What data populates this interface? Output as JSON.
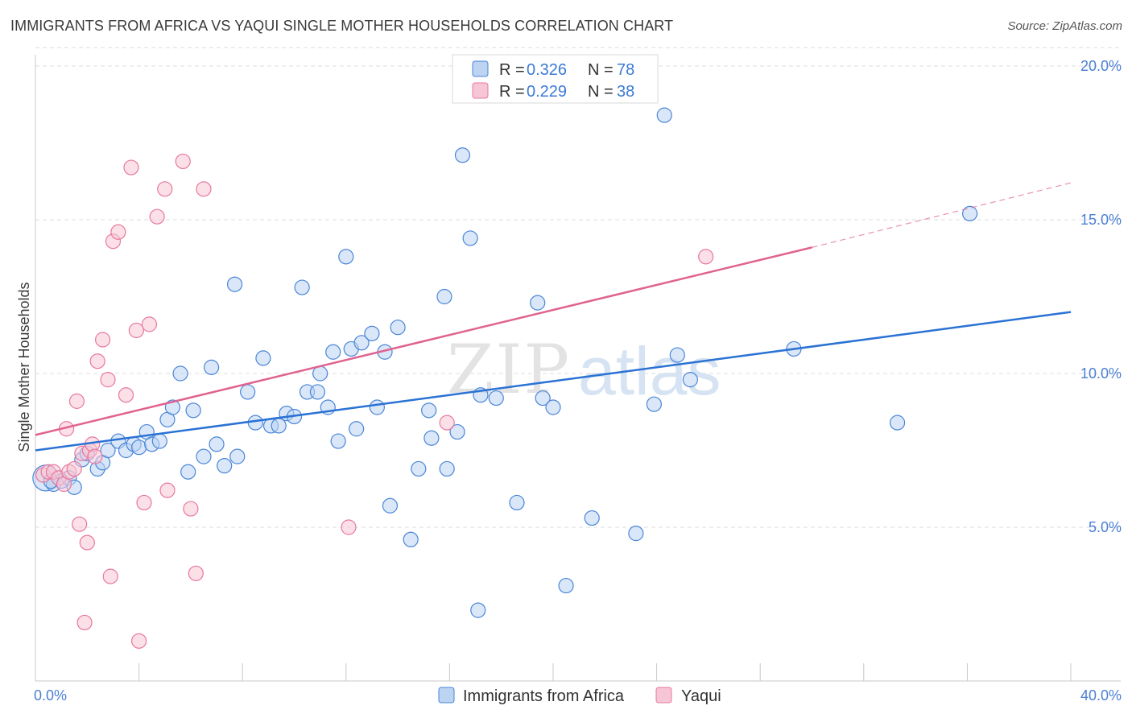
{
  "header": {
    "title": "IMMIGRANTS FROM AFRICA VS YAQUI SINGLE MOTHER HOUSEHOLDS CORRELATION CHART",
    "source": "Source: ZipAtlas.com"
  },
  "watermark": {
    "part1": "ZIP",
    "part2": "atlas"
  },
  "colors": {
    "blue": "#4a86d8",
    "blue_fill": "#bcd3f2",
    "blue_line": "#2a72d4",
    "pink": "#e8789e",
    "pink_fill": "#f7c6d6",
    "pink_line": "#e0628f",
    "grid": "#dcdcdc",
    "tick_text": "#4a7fd4"
  },
  "legend": {
    "entries": [
      {
        "r_label": "R =",
        "r_value": "0.326",
        "n_label": "N =",
        "n_value": "78"
      },
      {
        "r_label": "R =",
        "r_value": "0.229",
        "n_label": "N =",
        "n_value": "38"
      }
    ]
  },
  "bottom_legend": [
    "Immigrants from Africa",
    "Yaqui"
  ],
  "chart_data": {
    "type": "scatter",
    "title": "IMMIGRANTS FROM AFRICA VS YAQUI SINGLE MOTHER HOUSEHOLDS CORRELATION CHART",
    "xlabel": "",
    "ylabel": "Single Mother Households",
    "xlim": [
      0,
      40
    ],
    "ylim": [
      0,
      20.6
    ],
    "x_tick_labels": [
      {
        "value": 0,
        "label": "0.0%"
      },
      {
        "value": 40,
        "label": "40.0%"
      }
    ],
    "y_tick_labels": [
      {
        "value": 5,
        "label": "5.0%"
      },
      {
        "value": 10,
        "label": "10.0%"
      },
      {
        "value": 15,
        "label": "15.0%"
      },
      {
        "value": 20,
        "label": "20.0%"
      }
    ],
    "x_minor_ticks": [
      4,
      8,
      12,
      16,
      20,
      24,
      28,
      32,
      36,
      40
    ],
    "series": [
      {
        "name": "Immigrants from Africa",
        "color": "blue",
        "R": 0.326,
        "N": 78,
        "trend": {
          "x": [
            0,
            40
          ],
          "y": [
            7.5,
            12.0
          ]
        },
        "points": [
          [
            0.4,
            6.6
          ],
          [
            0.7,
            6.4
          ],
          [
            1.0,
            6.5
          ],
          [
            1.3,
            6.6
          ],
          [
            1.5,
            6.3
          ],
          [
            1.8,
            7.2
          ],
          [
            2.0,
            7.4
          ],
          [
            2.4,
            6.9
          ],
          [
            2.6,
            7.1
          ],
          [
            2.8,
            7.5
          ],
          [
            3.2,
            7.8
          ],
          [
            3.5,
            7.5
          ],
          [
            3.8,
            7.7
          ],
          [
            4.0,
            7.6
          ],
          [
            4.3,
            8.1
          ],
          [
            4.5,
            7.7
          ],
          [
            4.8,
            7.8
          ],
          [
            5.1,
            8.5
          ],
          [
            5.3,
            8.9
          ],
          [
            5.6,
            10.0
          ],
          [
            5.9,
            6.8
          ],
          [
            6.1,
            8.8
          ],
          [
            6.5,
            7.3
          ],
          [
            6.8,
            10.2
          ],
          [
            7.0,
            7.7
          ],
          [
            7.3,
            7.0
          ],
          [
            7.7,
            12.9
          ],
          [
            7.8,
            7.3
          ],
          [
            8.2,
            9.4
          ],
          [
            8.5,
            8.4
          ],
          [
            8.8,
            10.5
          ],
          [
            9.1,
            8.3
          ],
          [
            9.4,
            8.3
          ],
          [
            9.7,
            8.7
          ],
          [
            10.0,
            8.6
          ],
          [
            10.3,
            12.8
          ],
          [
            10.5,
            9.4
          ],
          [
            10.9,
            9.4
          ],
          [
            11.0,
            10.0
          ],
          [
            11.3,
            8.9
          ],
          [
            11.5,
            10.7
          ],
          [
            11.7,
            7.8
          ],
          [
            12.0,
            13.8
          ],
          [
            12.2,
            10.8
          ],
          [
            12.4,
            8.2
          ],
          [
            12.6,
            11.0
          ],
          [
            13.0,
            11.3
          ],
          [
            13.2,
            8.9
          ],
          [
            13.5,
            10.7
          ],
          [
            13.7,
            5.7
          ],
          [
            14.0,
            11.5
          ],
          [
            14.5,
            4.6
          ],
          [
            14.8,
            6.9
          ],
          [
            15.2,
            8.8
          ],
          [
            15.3,
            7.9
          ],
          [
            15.8,
            12.5
          ],
          [
            15.9,
            6.9
          ],
          [
            16.3,
            8.1
          ],
          [
            16.5,
            17.1
          ],
          [
            16.8,
            14.4
          ],
          [
            17.1,
            2.3
          ],
          [
            17.2,
            9.3
          ],
          [
            17.8,
            9.2
          ],
          [
            18.6,
            5.8
          ],
          [
            19.4,
            12.3
          ],
          [
            19.6,
            9.2
          ],
          [
            20.0,
            8.9
          ],
          [
            20.5,
            3.1
          ],
          [
            21.5,
            5.3
          ],
          [
            23.2,
            4.8
          ],
          [
            23.9,
            9.0
          ],
          [
            24.3,
            18.4
          ],
          [
            24.8,
            10.6
          ],
          [
            25.3,
            9.8
          ],
          [
            29.3,
            10.8
          ],
          [
            33.3,
            8.4
          ],
          [
            36.1,
            15.2
          ],
          [
            0.6,
            6.5
          ]
        ]
      },
      {
        "name": "Yaqui",
        "color": "pink",
        "R": 0.229,
        "N": 38,
        "trend": {
          "x": [
            0,
            30
          ],
          "y": [
            8.0,
            14.1
          ]
        },
        "trend_dashed": {
          "x": [
            30,
            40
          ],
          "y": [
            14.1,
            16.2
          ]
        },
        "points": [
          [
            0.3,
            6.7
          ],
          [
            0.5,
            6.8
          ],
          [
            0.7,
            6.8
          ],
          [
            0.9,
            6.6
          ],
          [
            1.1,
            6.4
          ],
          [
            1.2,
            8.2
          ],
          [
            1.3,
            6.8
          ],
          [
            1.6,
            9.1
          ],
          [
            1.7,
            5.1
          ],
          [
            1.8,
            7.4
          ],
          [
            1.9,
            1.9
          ],
          [
            2.0,
            4.5
          ],
          [
            2.1,
            7.5
          ],
          [
            2.2,
            7.7
          ],
          [
            2.3,
            7.3
          ],
          [
            2.4,
            10.4
          ],
          [
            2.6,
            11.1
          ],
          [
            2.8,
            9.8
          ],
          [
            2.9,
            3.4
          ],
          [
            3.0,
            14.3
          ],
          [
            3.2,
            14.6
          ],
          [
            3.5,
            9.3
          ],
          [
            3.7,
            16.7
          ],
          [
            3.9,
            11.4
          ],
          [
            4.0,
            1.3
          ],
          [
            4.2,
            5.8
          ],
          [
            4.4,
            11.6
          ],
          [
            4.7,
            15.1
          ],
          [
            5.0,
            16.0
          ],
          [
            5.1,
            6.2
          ],
          [
            5.7,
            16.9
          ],
          [
            6.0,
            5.6
          ],
          [
            6.2,
            3.5
          ],
          [
            6.5,
            16.0
          ],
          [
            12.1,
            5.0
          ],
          [
            15.9,
            8.4
          ],
          [
            25.9,
            13.8
          ],
          [
            1.5,
            6.9
          ]
        ]
      }
    ],
    "legend_position": "top-center"
  }
}
